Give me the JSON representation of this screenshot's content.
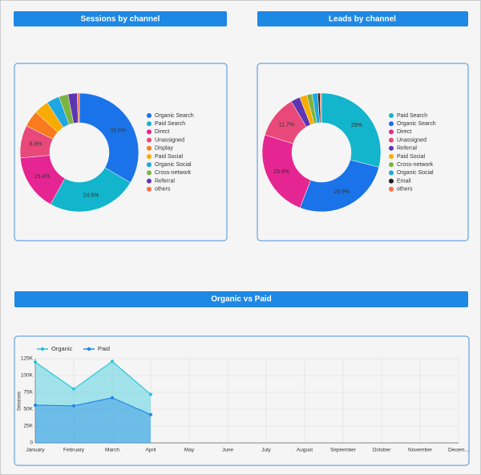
{
  "chart_data": [
    {
      "type": "donut",
      "title": "Sessions by channel",
      "categories": [
        "Organic Search",
        "Paid Search",
        "Direct",
        "Unassigned",
        "Display",
        "Paid Social",
        "Organic Social",
        "Cross-network",
        "Referral",
        "others"
      ],
      "values": [
        33.5,
        24.6,
        15.4,
        8.9,
        4.5,
        4,
        3.5,
        2.5,
        2.5,
        0.6
      ],
      "value_labels": [
        "33.5%",
        "24.6%",
        "15.4%",
        "8.9%",
        null,
        null,
        null,
        null,
        null,
        null
      ],
      "colors": [
        "#1a73e8",
        "#12b5cb",
        "#e52592",
        "#e8497a",
        "#f97b1d",
        "#f9ab00",
        "#1ea7e0",
        "#7cb342",
        "#5e35b1",
        "#ff7043"
      ]
    },
    {
      "type": "donut",
      "title": "Leads by channel",
      "categories": [
        "Paid Search",
        "Organic Search",
        "Direct",
        "Unassigned",
        "Referral",
        "Paid Social",
        "Cross-network",
        "Organic Social",
        "Email",
        "others"
      ],
      "values": [
        29,
        26.9,
        23.9,
        11.7,
        2.5,
        2,
        1.5,
        1.5,
        0.6,
        0.4
      ],
      "value_labels": [
        "29%",
        "26.9%",
        "23.9%",
        "11.7%",
        null,
        null,
        null,
        null,
        null,
        null
      ],
      "colors": [
        "#12b5cb",
        "#1a73e8",
        "#e52592",
        "#e8497a",
        "#5e35b1",
        "#f9ab00",
        "#7cb342",
        "#1ea7e0",
        "#222222",
        "#ff7043"
      ]
    },
    {
      "type": "area",
      "title": "Organic vs Paid",
      "y_label": "Sessions",
      "categories": [
        "January",
        "February",
        "March",
        "April",
        "May",
        "June",
        "July",
        "August",
        "September",
        "October",
        "November",
        "Decem..."
      ],
      "series": [
        {
          "name": "Organic",
          "color": "#26c6da",
          "values": [
            120000,
            80000,
            121000,
            72000,
            null,
            null,
            null,
            null,
            null,
            null,
            null,
            null
          ]
        },
        {
          "name": "Paid",
          "color": "#1e88e5",
          "values": [
            56000,
            55000,
            67000,
            42000,
            null,
            null,
            null,
            null,
            null,
            null,
            null,
            null
          ]
        }
      ],
      "ylim": [
        0,
        125000
      ],
      "yticks": [
        0,
        {
          "value": 25000,
          "label": "25K"
        },
        {
          "value": 50000,
          "label": "50K"
        },
        {
          "value": 75000,
          "label": "75K"
        },
        {
          "value": 100000,
          "label": "100K"
        },
        {
          "value": 125000,
          "label": "125K"
        }
      ],
      "grid": true,
      "legend": "top-left"
    }
  ]
}
